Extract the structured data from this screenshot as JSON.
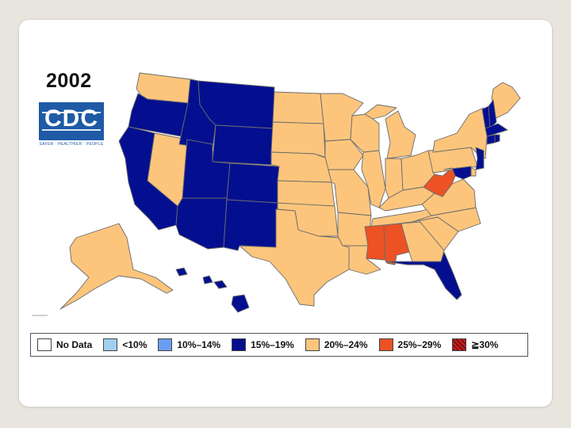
{
  "map": {
    "year": "2002",
    "logo": {
      "text": "CDC",
      "tagline": "SAFER · HEALTHIER · PEOPLE"
    },
    "colors": {
      "no_data": "#ffffff",
      "lt10": "#9fd0f0",
      "p10_14": "#6b9df2",
      "p15_19": "#040f90",
      "p20_24": "#fdc57c",
      "p25_29": "#ec5224",
      "ge30": "#8b1010",
      "border": "#6b6b6b"
    },
    "state_categories": {
      "WA": "20-24",
      "OR": "15-19",
      "CA": "15-19",
      "NV": "20-24",
      "ID": "15-19",
      "MT": "15-19",
      "WY": "15-19",
      "UT": "15-19",
      "AZ": "15-19",
      "CO": "15-19",
      "NM": "15-19",
      "ND": "20-24",
      "SD": "20-24",
      "NE": "20-24",
      "KS": "20-24",
      "OK": "20-24",
      "TX": "20-24",
      "MN": "20-24",
      "IA": "20-24",
      "MO": "20-24",
      "AR": "20-24",
      "LA": "20-24",
      "WI": "20-24",
      "IL": "20-24",
      "MI": "20-24",
      "IN": "20-24",
      "OH": "20-24",
      "KY": "20-24",
      "TN": "20-24",
      "MS": "25-29",
      "AL": "25-29",
      "GA": "20-24",
      "FL": "15-19",
      "SC": "20-24",
      "NC": "20-24",
      "VA": "20-24",
      "WV": "25-29",
      "PA": "20-24",
      "NY": "20-24",
      "ME": "20-24",
      "VT": "15-19",
      "NH": "15-19",
      "MA": "15-19",
      "CT": "15-19",
      "RI": "15-19",
      "NJ": "15-19",
      "DE": "20-24",
      "MD": "15-19",
      "AK": "20-24",
      "HI": "15-19"
    }
  },
  "legend": {
    "items": [
      {
        "label": "No Data",
        "color": "#ffffff",
        "hatched": false
      },
      {
        "label": "<10%",
        "color": "#9fd0f0",
        "hatched": false
      },
      {
        "label": "10%–14%",
        "color": "#6b9df2",
        "hatched": false
      },
      {
        "label": "15%–19%",
        "color": "#040f90",
        "hatched": false
      },
      {
        "label": "20%–24%",
        "color": "#fdc57c",
        "hatched": false
      },
      {
        "label": "25%–29%",
        "color": "#ec5224",
        "hatched": false
      },
      {
        "label": "≧30%",
        "color": "#8b1010",
        "hatched": true
      }
    ]
  }
}
